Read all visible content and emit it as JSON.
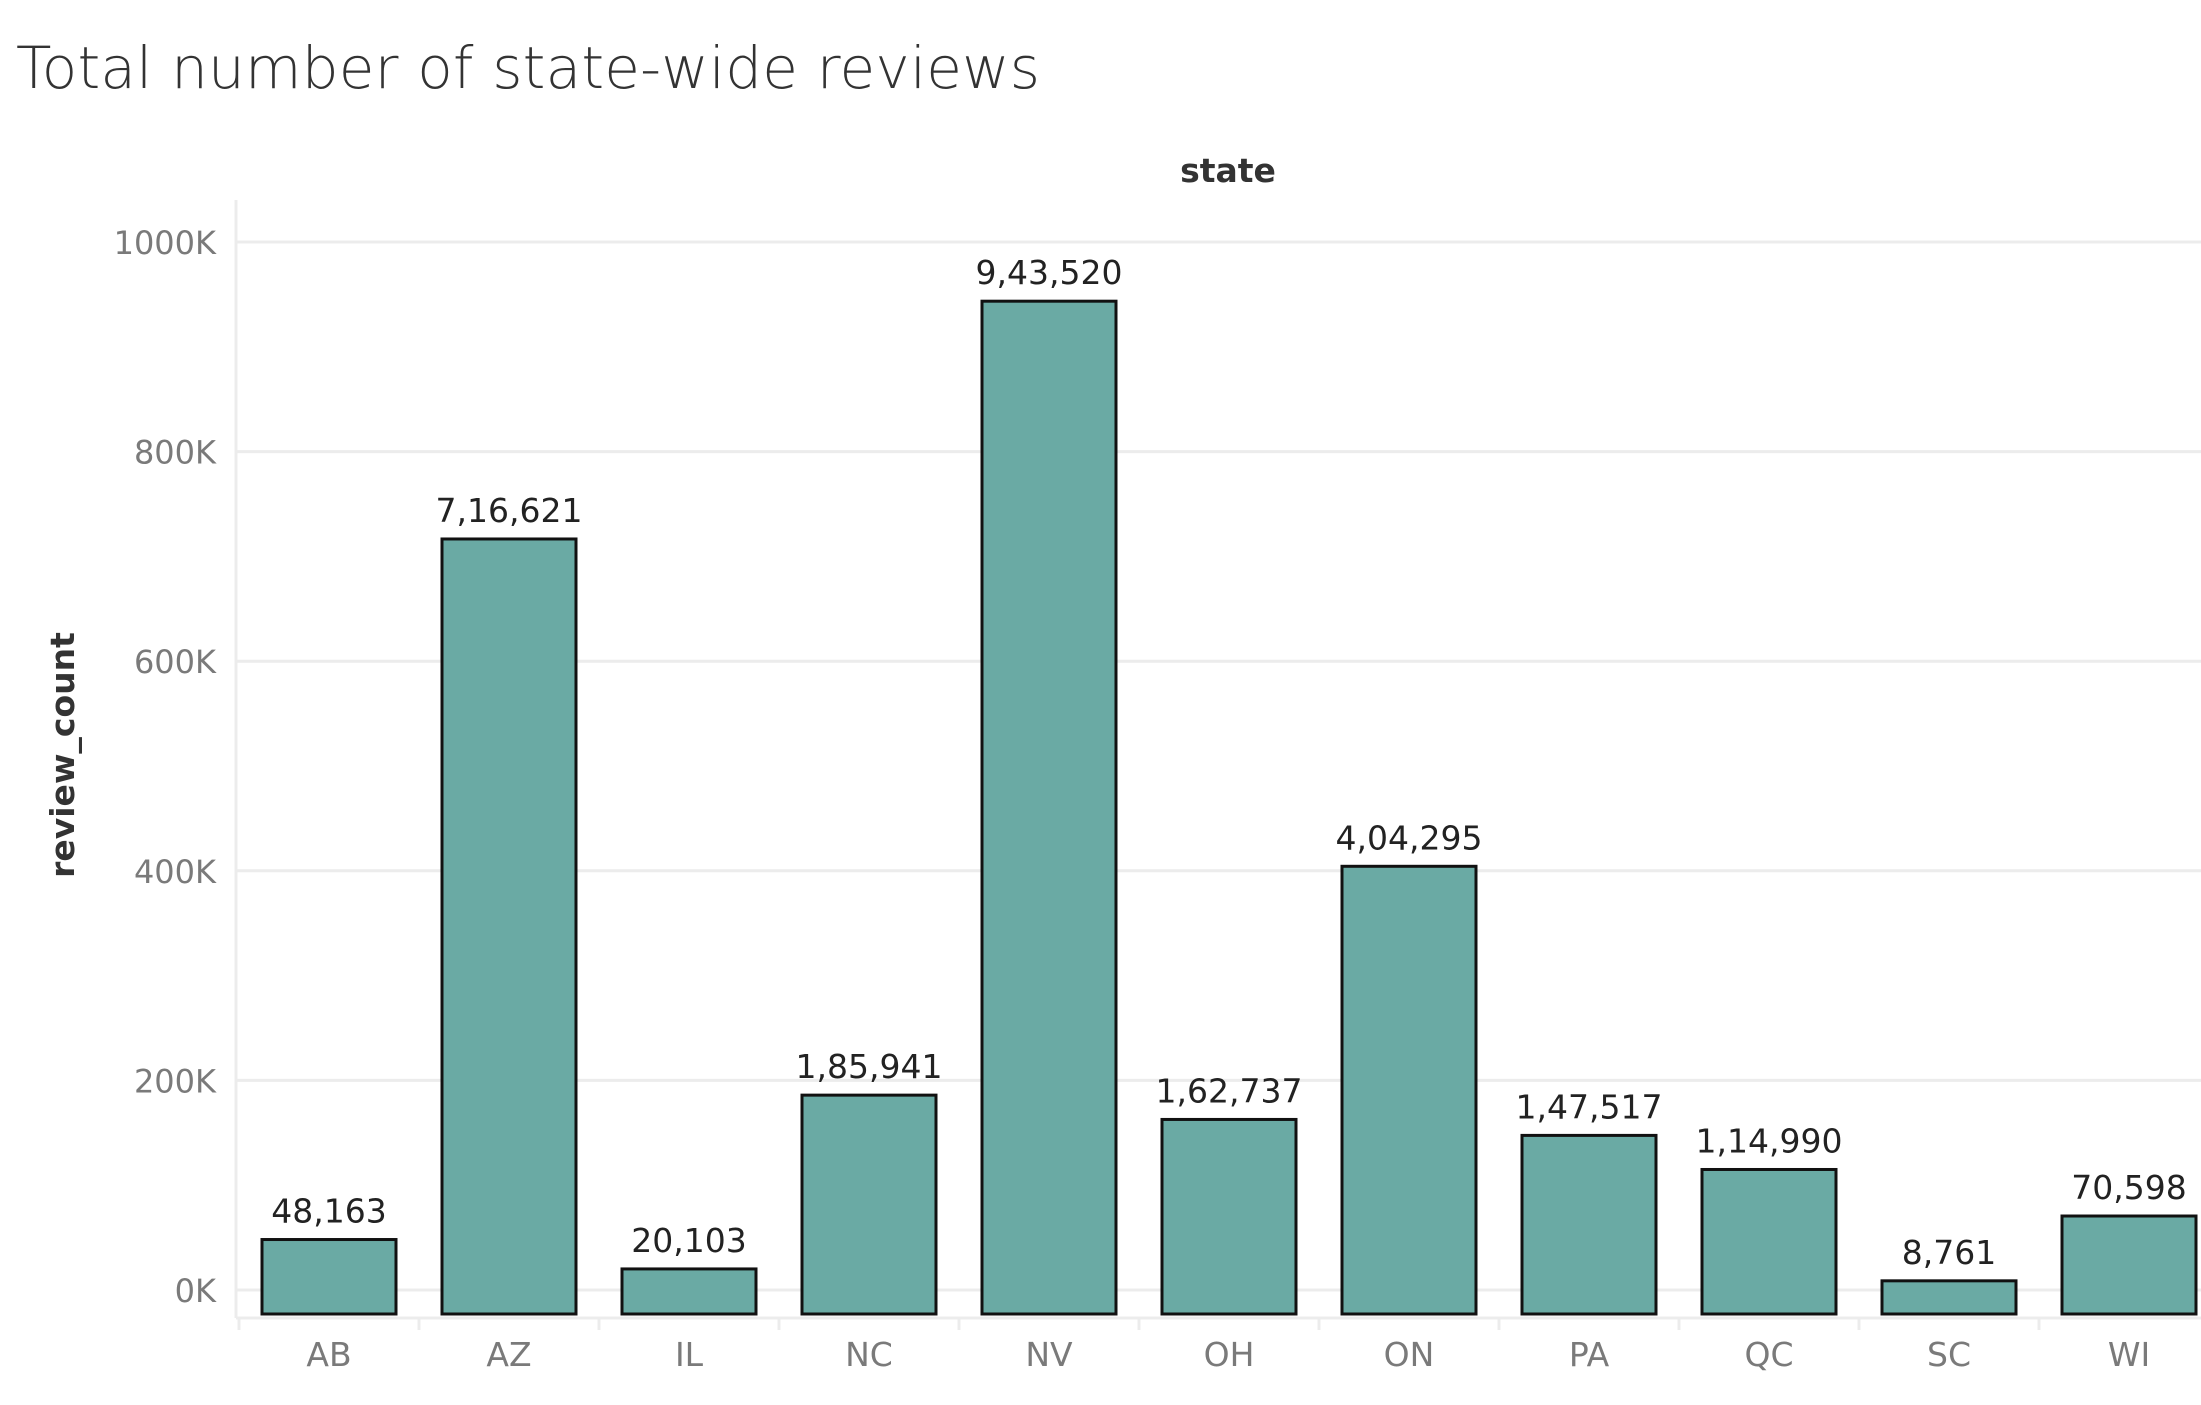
{
  "chart_data": {
    "type": "bar",
    "title": "Total number of state-wide reviews",
    "xlabel": "state",
    "ylabel": "review_count",
    "categories": [
      "AB",
      "AZ",
      "IL",
      "NC",
      "NV",
      "OH",
      "ON",
      "PA",
      "QC",
      "SC",
      "WI"
    ],
    "values": [
      48163,
      716621,
      20103,
      185941,
      943520,
      162737,
      404295,
      147517,
      114990,
      8761,
      70598
    ],
    "value_labels": [
      "48,163",
      "7,16,621",
      "20,103",
      "1,85,941",
      "9,43,520",
      "1,62,737",
      "4,04,295",
      "1,47,517",
      "1,14,990",
      "8,761",
      "70,598"
    ],
    "y_ticks": [
      0,
      200000,
      400000,
      600000,
      800000,
      1000000
    ],
    "y_tick_labels": [
      "0K",
      "200K",
      "400K",
      "600K",
      "800K",
      "1000K"
    ],
    "ylim": [
      0,
      1000000
    ],
    "grid": true,
    "legend": "none",
    "colors": {
      "bar_fill": "#6aaaa4",
      "bar_stroke": "#111111",
      "grid": "#ececec"
    }
  }
}
